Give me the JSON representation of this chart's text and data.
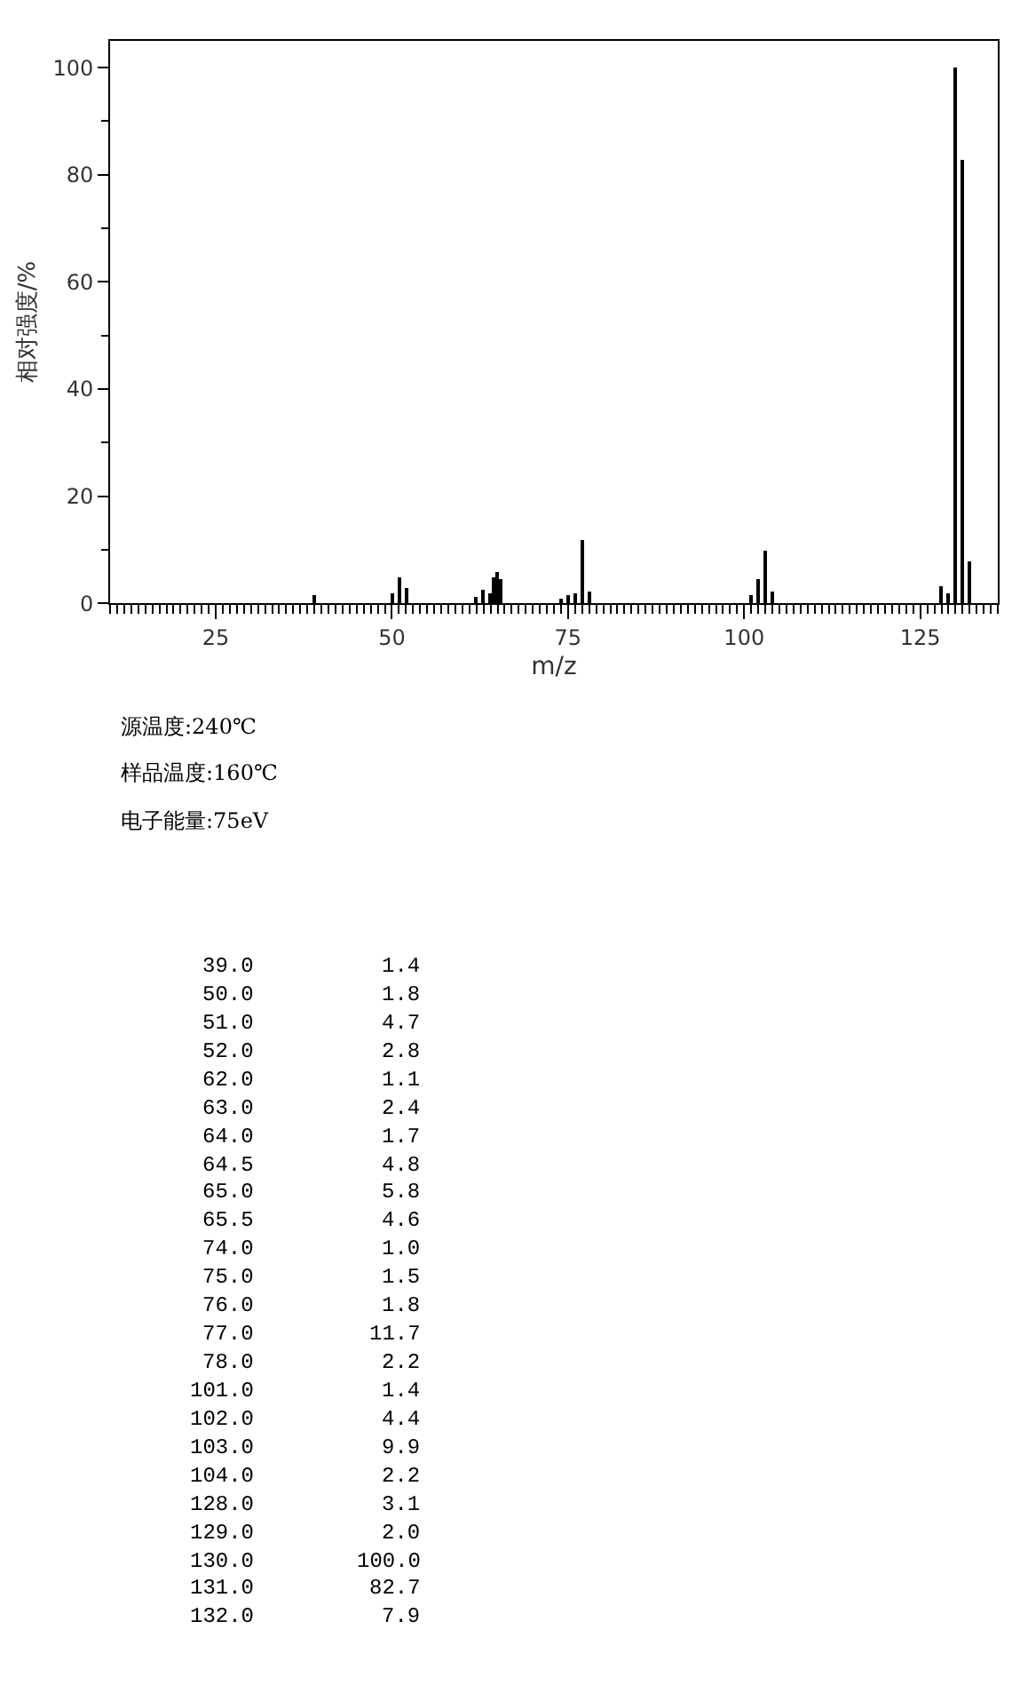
{
  "chart_data": {
    "type": "bar",
    "xlabel": "m/z",
    "ylabel": "相对强度/%",
    "x": [
      39.0,
      50.0,
      51.0,
      52.0,
      62.0,
      63.0,
      64.0,
      64.5,
      65.0,
      65.5,
      74.0,
      75.0,
      76.0,
      77.0,
      78.0,
      101.0,
      102.0,
      103.0,
      104.0,
      128.0,
      129.0,
      130.0,
      131.0,
      132.0
    ],
    "series": [
      {
        "color": "#000000",
        "values": [
          1.4,
          1.8,
          4.7,
          2.8,
          1.1,
          2.4,
          1.7,
          4.8,
          5.8,
          4.6,
          1.0,
          1.5,
          1.8,
          11.7,
          2.2,
          1.4,
          4.4,
          9.9,
          2.2,
          3.1,
          2.0,
          100.0,
          82.7,
          7.9
        ]
      }
    ],
    "xlim": [
      10,
      136
    ],
    "xticks": [
      25,
      50,
      75,
      100,
      125
    ],
    "ylim": [
      0,
      105
    ],
    "yticks": [
      0,
      20,
      40,
      60,
      80,
      100
    ],
    "annotations": [
      "源温度:240℃",
      "样品温度:160℃",
      "电子能量:75eV",
      "39.0",
      "1.4",
      "50.0",
      "1.8",
      "51.0",
      "4.7",
      "52.0",
      "2.8",
      "62.0",
      "1.1",
      "63.0",
      "2.4",
      "64.0",
      "1.7",
      "64.5",
      "4.8",
      "65.0",
      "5.8",
      "65.5",
      "4.6",
      "74.0",
      "1.0",
      "75.0",
      "1.5",
      "76.0",
      "1.8",
      "77.0",
      "11.7",
      "78.0",
      "2.2",
      "101.0",
      "1.4",
      "102.0",
      "4.4",
      "103.0",
      "9.9",
      "104.0",
      "2.2",
      "128.0",
      "3.1",
      "129.0",
      "2.0",
      "130.0",
      "100.0",
      "131.0",
      "82.7",
      "132.0",
      "7.9"
    ]
  }
}
